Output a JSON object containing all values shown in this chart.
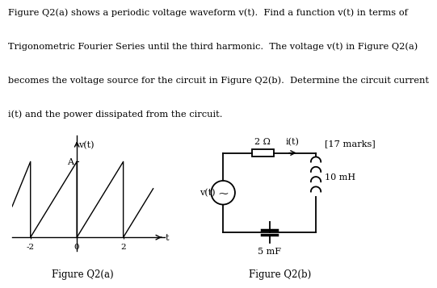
{
  "text_lines": [
    "Figure Q2(a) shows a periodic voltage waveform v(t).  Find a function v(t) in terms of",
    "Trigonometric Fourier Series until the third harmonic.  The voltage v(t) in Figure Q2(a)",
    "becomes the voltage source for the circuit in Figure Q2(b).  Determine the circuit current",
    "i(t) and the power dissipated from the circuit."
  ],
  "marks_text": "[17 marks]",
  "fig_a_label": "Figure Q2(a)",
  "fig_b_label": "Figure Q2(b)",
  "waveform_xlabel": "t",
  "waveform_ylabel": "v(t)",
  "waveform_A_label": "A",
  "resistor_label": "2 Ω",
  "inductor_label": "10 mH",
  "capacitor_label": "5 mF",
  "current_label": "i(t)",
  "source_label": "v(t)",
  "bg_color": "#ffffff",
  "line_color": "#000000"
}
